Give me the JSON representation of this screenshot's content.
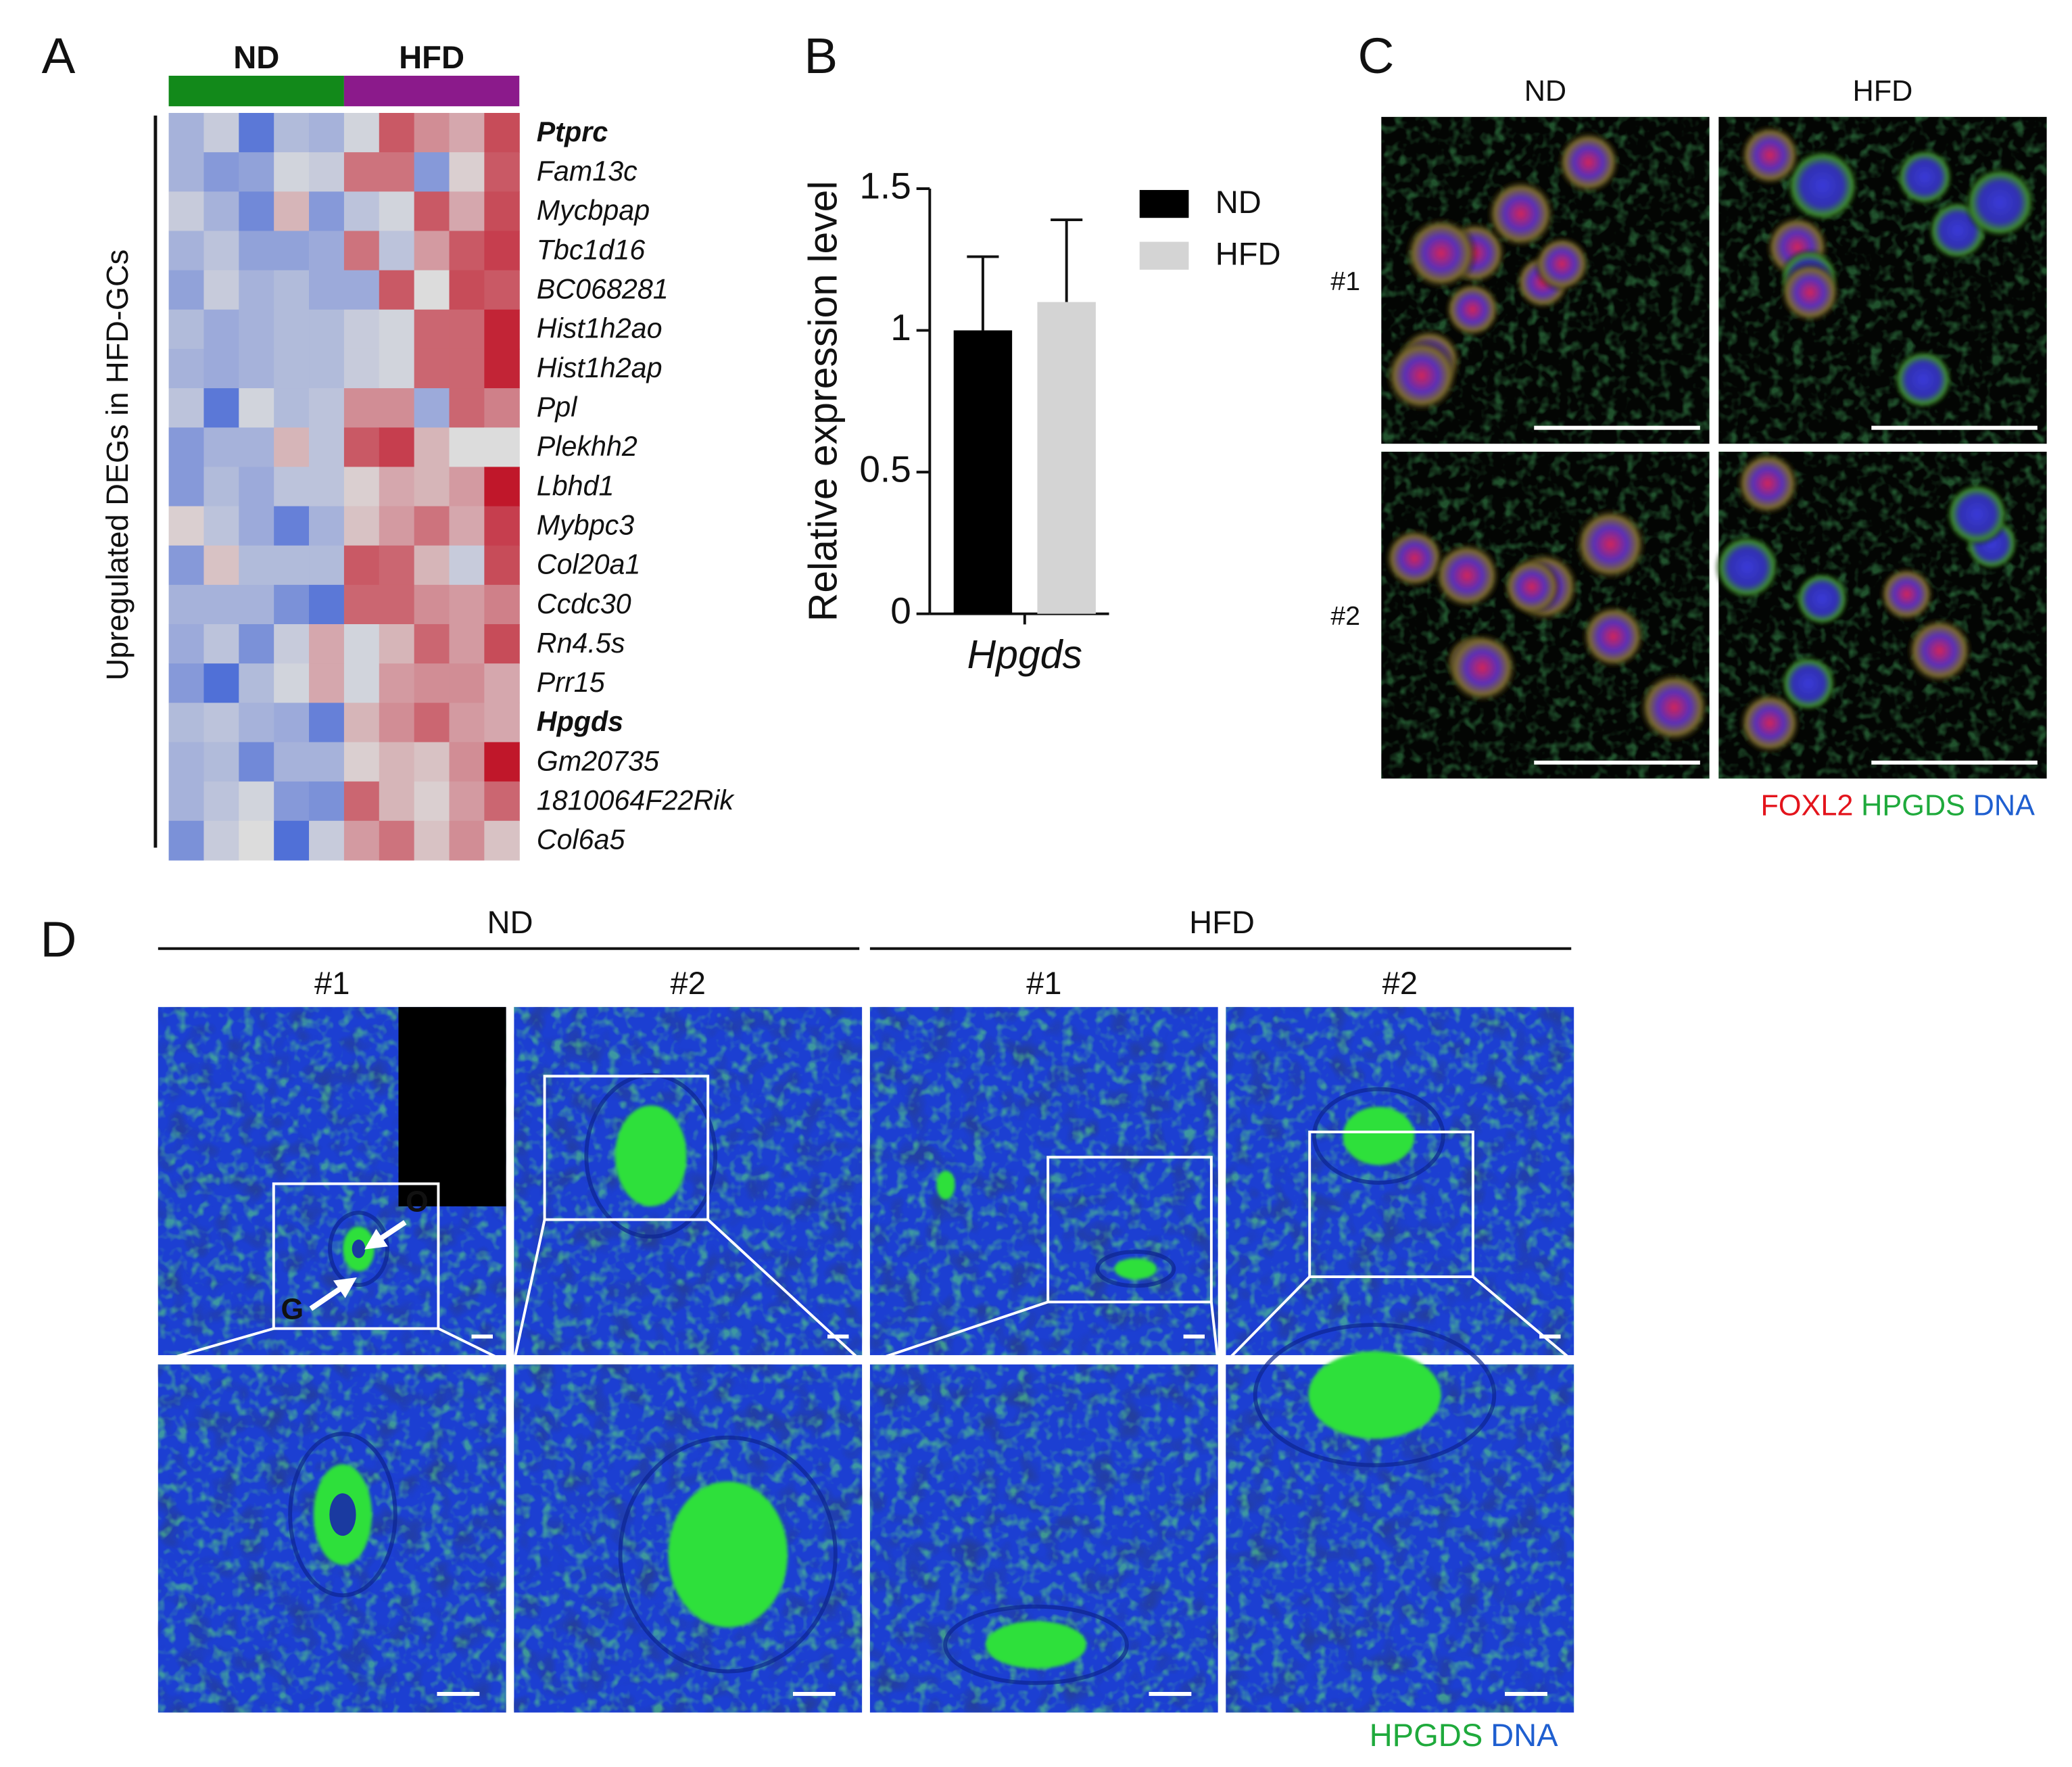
{
  "chart_data": [
    {
      "type": "heatmap",
      "label": "A",
      "y_label": "Upregulated DEGs in HFD-GCs",
      "groups": [
        {
          "name": "ND",
          "color": "#12891a"
        },
        {
          "name": "HFD",
          "color": "#8b1a8b"
        }
      ],
      "colormap": [
        "#3b5fd6",
        "#dcdcdc",
        "#c0172a"
      ],
      "zlim": [
        -1.5,
        1.5
      ],
      "rows": [
        {
          "gene": "Ptprc",
          "label_color": "#e3141c",
          "bold": true,
          "values": [
            -0.5,
            -0.2,
            -1.2,
            -0.4,
            -0.5,
            -0.1,
            1.0,
            0.6,
            0.4,
            1.1
          ]
        },
        {
          "gene": "Fam13c",
          "label_color": "#222222",
          "bold": false,
          "values": [
            -0.5,
            -0.8,
            -0.7,
            -0.1,
            -0.2,
            0.8,
            0.8,
            -0.8,
            0.1,
            1.0
          ]
        },
        {
          "gene": "Mycbpap",
          "label_color": "#222222",
          "bold": false,
          "values": [
            -0.2,
            -0.5,
            -1.0,
            0.3,
            -0.8,
            -0.3,
            -0.1,
            1.0,
            0.4,
            1.1
          ]
        },
        {
          "gene": "Tbc1d16",
          "label_color": "#222222",
          "bold": false,
          "values": [
            -0.5,
            -0.3,
            -0.7,
            -0.7,
            -0.6,
            0.8,
            -0.3,
            0.5,
            1.0,
            1.2
          ]
        },
        {
          "gene": "BC068281",
          "label_color": "#222222",
          "bold": false,
          "values": [
            -0.7,
            -0.2,
            -0.5,
            -0.4,
            -0.6,
            -0.6,
            1.0,
            0.0,
            1.1,
            1.0
          ]
        },
        {
          "gene": "Hist1h2ao",
          "label_color": "#222222",
          "bold": false,
          "values": [
            -0.4,
            -0.6,
            -0.5,
            -0.4,
            -0.4,
            -0.2,
            -0.1,
            0.9,
            0.9,
            1.4
          ]
        },
        {
          "gene": "Hist1h2ap",
          "label_color": "#222222",
          "bold": false,
          "values": [
            -0.5,
            -0.6,
            -0.5,
            -0.4,
            -0.4,
            -0.2,
            -0.1,
            0.9,
            0.9,
            1.4
          ]
        },
        {
          "gene": "Ppl",
          "label_color": "#222222",
          "bold": false,
          "values": [
            -0.3,
            -1.2,
            -0.1,
            -0.4,
            -0.3,
            0.6,
            0.6,
            -0.6,
            0.9,
            0.7
          ]
        },
        {
          "gene": "Plekhh2",
          "label_color": "#222222",
          "bold": false,
          "values": [
            -0.8,
            -0.5,
            -0.5,
            0.3,
            -0.3,
            1.0,
            1.2,
            0.3,
            0.0,
            0.0
          ]
        },
        {
          "gene": "Lbhd1",
          "label_color": "#222222",
          "bold": false,
          "values": [
            -0.8,
            -0.4,
            -0.6,
            -0.3,
            -0.3,
            0.1,
            0.4,
            0.3,
            0.5,
            1.6
          ]
        },
        {
          "gene": "Mybpc3",
          "label_color": "#222222",
          "bold": false,
          "values": [
            0.1,
            -0.3,
            -0.6,
            -1.1,
            -0.5,
            0.2,
            0.5,
            0.8,
            0.4,
            1.2
          ]
        },
        {
          "gene": "Col20a1",
          "label_color": "#222222",
          "bold": false,
          "values": [
            -0.8,
            0.2,
            -0.4,
            -0.4,
            -0.4,
            1.0,
            0.9,
            0.3,
            -0.2,
            1.1
          ]
        },
        {
          "gene": "Ccdc30",
          "label_color": "#222222",
          "bold": false,
          "values": [
            -0.5,
            -0.5,
            -0.5,
            -0.9,
            -1.2,
            0.9,
            0.9,
            0.6,
            0.5,
            0.7
          ]
        },
        {
          "gene": "Rn4.5s",
          "label_color": "#222222",
          "bold": false,
          "values": [
            -0.6,
            -0.3,
            -0.9,
            -0.2,
            0.4,
            -0.1,
            0.3,
            0.9,
            0.5,
            1.1
          ]
        },
        {
          "gene": "Prr15",
          "label_color": "#222222",
          "bold": false,
          "values": [
            -0.8,
            -1.3,
            -0.4,
            -0.1,
            0.4,
            -0.1,
            0.5,
            0.6,
            0.6,
            0.4
          ]
        },
        {
          "gene": "Hpgds",
          "label_color": "#e3141c",
          "bold": true,
          "values": [
            -0.4,
            -0.3,
            -0.5,
            -0.6,
            -1.1,
            0.3,
            0.6,
            0.9,
            0.5,
            0.4
          ]
        },
        {
          "gene": "Gm20735",
          "label_color": "#222222",
          "bold": false,
          "values": [
            -0.5,
            -0.4,
            -1.0,
            -0.5,
            -0.5,
            0.1,
            0.3,
            0.2,
            0.6,
            1.5
          ]
        },
        {
          "gene": "1810064F22Rik",
          "label_color": "#222222",
          "bold": false,
          "values": [
            -0.5,
            -0.3,
            -0.1,
            -0.8,
            -0.9,
            0.9,
            0.3,
            0.1,
            0.5,
            0.9
          ]
        },
        {
          "gene": "Col6a5",
          "label_color": "#222222",
          "bold": false,
          "values": [
            -0.9,
            -0.2,
            0.0,
            -1.3,
            -0.2,
            0.5,
            0.8,
            0.2,
            0.6,
            0.2
          ]
        }
      ]
    },
    {
      "type": "bar",
      "label": "B",
      "y_label": "Relative expression level",
      "categories": [
        "Hpgds"
      ],
      "series": [
        {
          "name": "ND",
          "color": "#000000",
          "values": [
            1.0
          ],
          "errors": [
            0.26
          ]
        },
        {
          "name": "HFD",
          "color": "#d4d4d4",
          "values": [
            1.1
          ],
          "errors": [
            0.29
          ]
        }
      ],
      "ylim": [
        0,
        1.5
      ],
      "yticks": [
        0,
        0.5,
        1,
        1.5
      ],
      "legend": "right"
    }
  ],
  "panel_c": {
    "label": "C",
    "columns": [
      "ND",
      "HFD"
    ],
    "rows": [
      "#1",
      "#2"
    ],
    "legend": [
      {
        "text": "FOXL2",
        "color": "#e3141c"
      },
      {
        "text": "HPGDS",
        "color": "#1faa3c"
      },
      {
        "text": "DNA",
        "color": "#1f5fd0"
      }
    ]
  },
  "panel_d": {
    "label": "D",
    "groups": [
      {
        "name": "ND",
        "samples": [
          "#1",
          "#2"
        ]
      },
      {
        "name": "HFD",
        "samples": [
          "#1",
          "#2"
        ]
      }
    ],
    "arrows": [
      "O",
      "G"
    ],
    "legend": [
      {
        "text": "HPGDS",
        "color": "#1faa3c"
      },
      {
        "text": "DNA",
        "color": "#1f5fd0"
      }
    ]
  }
}
